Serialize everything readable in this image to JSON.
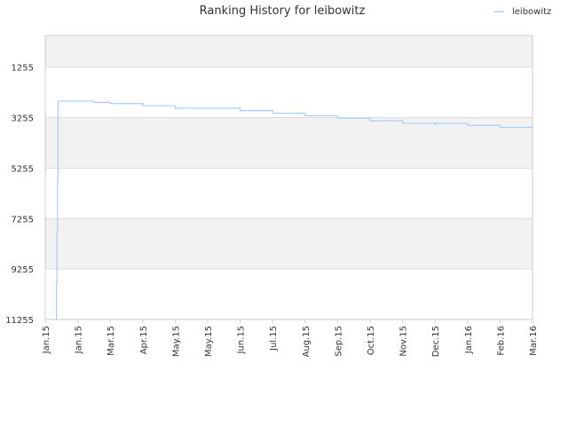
{
  "chart_data": {
    "type": "line",
    "title": "Ranking History for leibowitz",
    "xlabel": "",
    "ylabel": "",
    "y_reversed": true,
    "ylim": [
      11255,
      0
    ],
    "y_ticks": [
      1255,
      3255,
      5255,
      7255,
      9255,
      11255
    ],
    "x_ticks": [
      "Jan.15",
      "Jan.15",
      "Mar.15",
      "Apr.15",
      "May.15",
      "May.15",
      "Jun.15",
      "Jul.15",
      "Aug.15",
      "Sep.15",
      "Oct.15",
      "Nov.15",
      "Dec.15",
      "Jan.16",
      "Feb.16",
      "Mar.16"
    ],
    "legend_position": "top-right",
    "grid": true,
    "colors": {
      "series": "#a9cdf4",
      "band": "#f2f2f2",
      "gridline": "#dddddd",
      "axis": "#cccccc"
    },
    "series": [
      {
        "name": "leibowitz",
        "points": [
          [
            "Jan.15",
            11255
          ],
          [
            "Jan.15",
            9800
          ],
          [
            "Jan.15",
            7800
          ],
          [
            "Jan.15",
            5600
          ],
          [
            "Jan.15",
            2600
          ],
          [
            "Jan.15",
            2600
          ],
          [
            "Feb.15",
            2650
          ],
          [
            "Mar.15",
            2700
          ],
          [
            "Apr.15",
            2780
          ],
          [
            "May.15",
            2880
          ],
          [
            "Jun.15",
            2980
          ],
          [
            "Jul.15",
            3080
          ],
          [
            "Aug.15",
            3180
          ],
          [
            "Sep.15",
            3280
          ],
          [
            "Oct.15",
            3380
          ],
          [
            "Nov.15",
            3480
          ],
          [
            "Dec.15",
            3560
          ],
          [
            "Dec.15",
            3480
          ],
          [
            "Jan.16",
            3560
          ],
          [
            "Feb.16",
            3640
          ],
          [
            "Mar.16",
            3720
          ],
          [
            "Mar.16",
            3600
          ]
        ]
      }
    ]
  }
}
